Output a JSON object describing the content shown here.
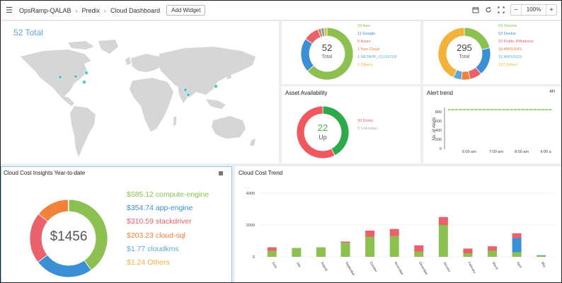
{
  "topbar": {
    "breadcrumbs": [
      "OpsRamp-QALAB",
      "Predix",
      "Cloud Dashboard"
    ],
    "add_widget_label": "Add Widget",
    "zoom_value": "100%",
    "zoom_minus": "−",
    "zoom_plus": "+"
  },
  "map_panel": {
    "total_label": "52 Total"
  },
  "donut_cloud": {
    "center_value": "52",
    "center_label": "Total",
    "legend": [
      {
        "label": "33 Aws",
        "color": "#8cc152"
      },
      {
        "label": "11 Google",
        "color": "#3b8fd4"
      },
      {
        "label": "5 Azure",
        "color": "#e8616b"
      },
      {
        "label": "1 Non Cloud",
        "color": "#f0823a"
      },
      {
        "label": "1 NETAPP_CLUSTER",
        "color": "#5da9d6"
      },
      {
        "label": "1 Others",
        "color": "#f2b33d"
      }
    ],
    "values": [
      33,
      11,
      5,
      1,
      1,
      1
    ]
  },
  "donut_type": {
    "center_value": "295",
    "center_label": "Total",
    "legend": [
      {
        "label": "63 Volume",
        "color": "#8cc152"
      },
      {
        "label": "52 Device",
        "color": "#3b8fd4"
      },
      {
        "label": "22 Public IPAddress",
        "color": "#e8616b"
      },
      {
        "label": "16 AWS/SNS",
        "color": "#f0823a"
      },
      {
        "label": "15 AWS/SQS",
        "color": "#5da9d6"
      },
      {
        "label": "127 Others",
        "color": "#f2b33d"
      }
    ],
    "values": [
      63,
      52,
      22,
      16,
      15,
      127
    ]
  },
  "availability": {
    "title": "Asset Availability",
    "center_value": "22",
    "center_label": "Up",
    "legend": [
      {
        "label": "30 Down",
        "color": "#e8616b"
      },
      {
        "label": "0 Unknown",
        "color": "#aaaaaa"
      }
    ],
    "values": [
      22,
      30
    ]
  },
  "alert_trend": {
    "title": "Alert trend",
    "range_label": "4H",
    "ylabel": "No. of Alerts",
    "yticks": [
      "800",
      "600",
      "400",
      "200",
      "0"
    ],
    "xticks": [
      "6:00 am",
      "7:00 am",
      "8:00 am",
      "9:00 a"
    ]
  },
  "cost_insights": {
    "title": "Cloud Cost Insights Year-to-date",
    "center_value": "$1456",
    "legend": [
      {
        "label": "$585.12 compute-engine",
        "color": "#8cc152"
      },
      {
        "label": "$354.74 app-engine",
        "color": "#3b8fd4"
      },
      {
        "label": "$310.59 stackdriver",
        "color": "#e8616b"
      },
      {
        "label": "$203.23 cloud-sql",
        "color": "#f0823a"
      },
      {
        "label": "$1.77 cloudkms",
        "color": "#5da9d6"
      },
      {
        "label": "$1.24 Others",
        "color": "#f2b33d"
      }
    ],
    "values": [
      585.12,
      354.74,
      310.59,
      203.23,
      1.77,
      1.24
    ]
  },
  "cost_trend": {
    "title": "Cloud Cost Trend"
  },
  "chart_data": {
    "type": "bar",
    "title": "Cloud Cost Trend",
    "categories": [
      "June",
      "July",
      "August",
      "September",
      "October",
      "November",
      "December",
      "January",
      "February",
      "March",
      "April",
      "May"
    ],
    "ylim": [
      0,
      4000
    ],
    "yticks": [
      0,
      2000,
      4000
    ],
    "series": [
      {
        "color": "#8cc152",
        "values": [
          380,
          560,
          600,
          880,
          1250,
          1300,
          320,
          2000,
          220,
          380,
          280,
          60
        ]
      },
      {
        "color": "#3b8fd4",
        "values": [
          0,
          0,
          0,
          0,
          0,
          0,
          0,
          0,
          0,
          0,
          900,
          40
        ]
      },
      {
        "color": "#e8616b",
        "values": [
          220,
          0,
          0,
          80,
          400,
          450,
          400,
          500,
          300,
          280,
          300,
          0
        ]
      }
    ]
  }
}
